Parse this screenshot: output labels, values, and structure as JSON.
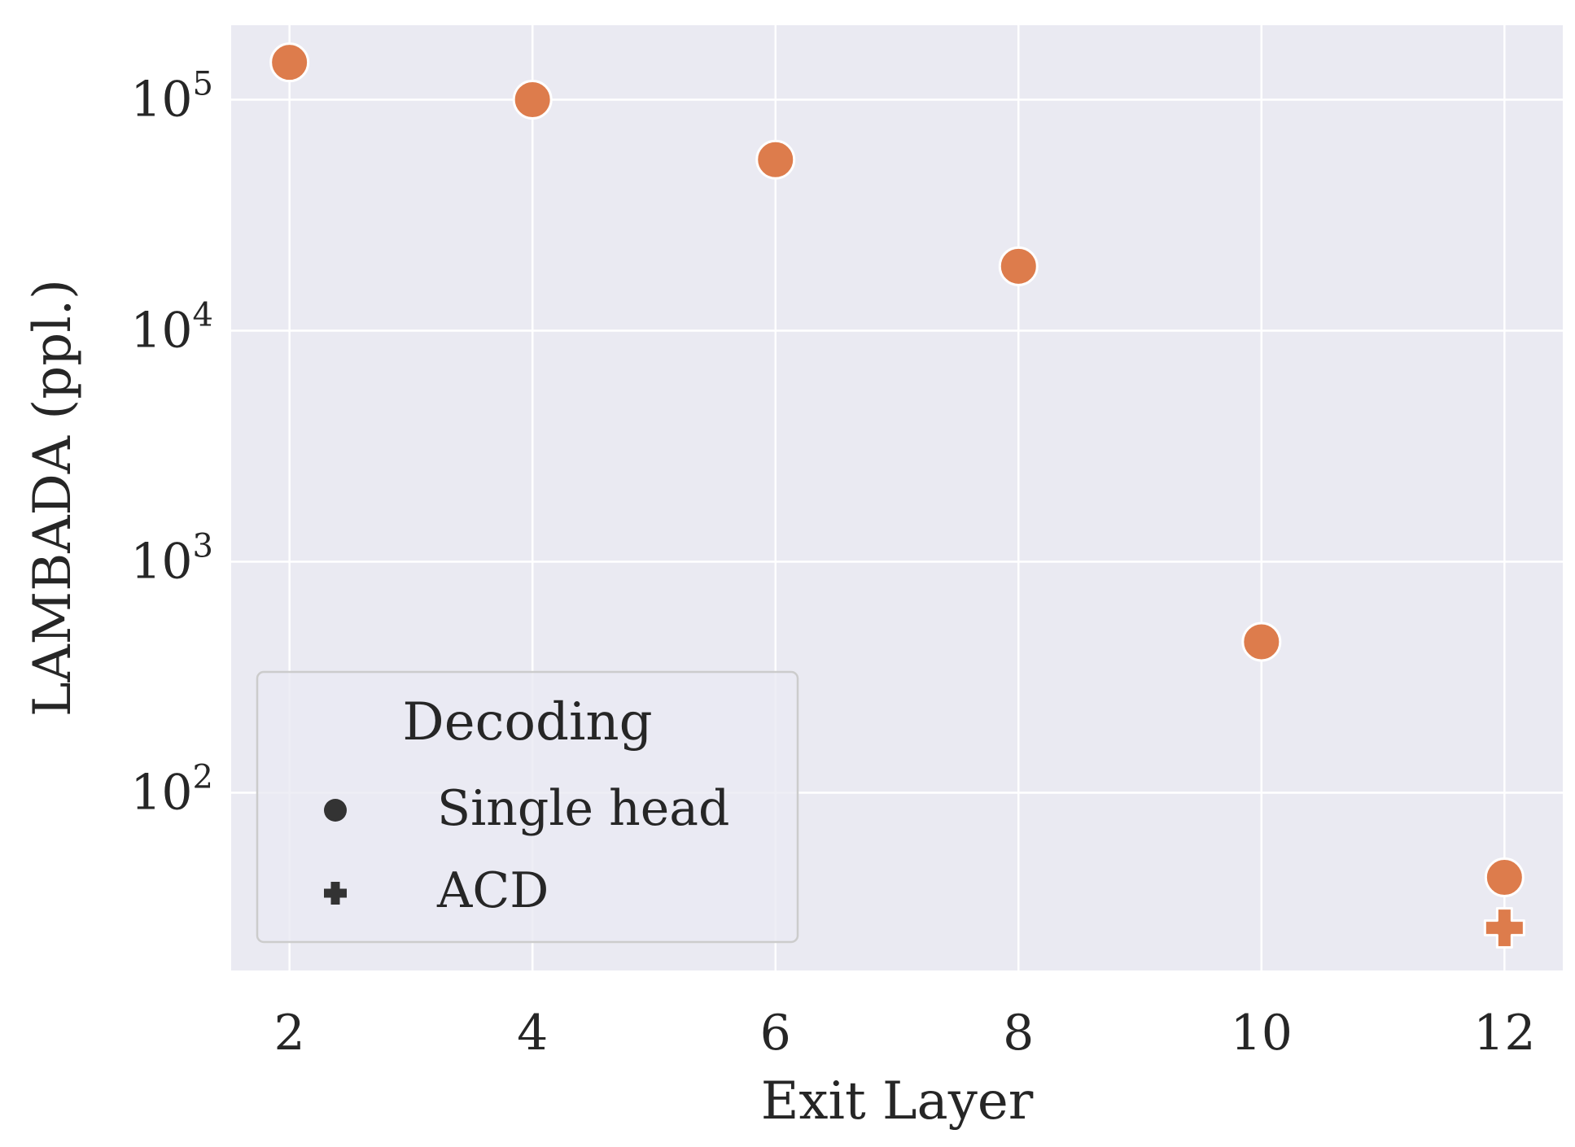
{
  "chart_data": {
    "type": "scatter",
    "title": "",
    "xlabel": "Exit Layer",
    "ylabel": "LAMBADA (ppl.)",
    "yscale": "log",
    "xlim": [
      1.52,
      12.48
    ],
    "ylim": [
      17,
      210000
    ],
    "xticks": [
      2,
      4,
      6,
      8,
      10,
      12
    ],
    "yticks": [
      {
        "value": 100,
        "base": "10",
        "exp": "2"
      },
      {
        "value": 1000,
        "base": "10",
        "exp": "3"
      },
      {
        "value": 10000,
        "base": "10",
        "exp": "4"
      },
      {
        "value": 100000,
        "base": "10",
        "exp": "5"
      }
    ],
    "grid": true,
    "legend": {
      "title": "Decoding",
      "placement": "lower-left",
      "entries": [
        {
          "label": "Single head",
          "marker": "circle"
        },
        {
          "label": "ACD",
          "marker": "plus"
        }
      ]
    },
    "series": [
      {
        "name": "Single head",
        "marker": "circle",
        "color": "#dd7c4c",
        "x": [
          2,
          4,
          6,
          8,
          10,
          12
        ],
        "y": [
          145000,
          100000,
          55000,
          19000,
          450,
          43
        ]
      },
      {
        "name": "ACD",
        "marker": "plus",
        "color": "#dd7c4c",
        "x": [
          12
        ],
        "y": [
          26
        ]
      }
    ],
    "colors": {
      "background": "#eaeaf2",
      "grid": "#ffffff",
      "marker": "#dd7c4c",
      "text": "#262626"
    }
  }
}
